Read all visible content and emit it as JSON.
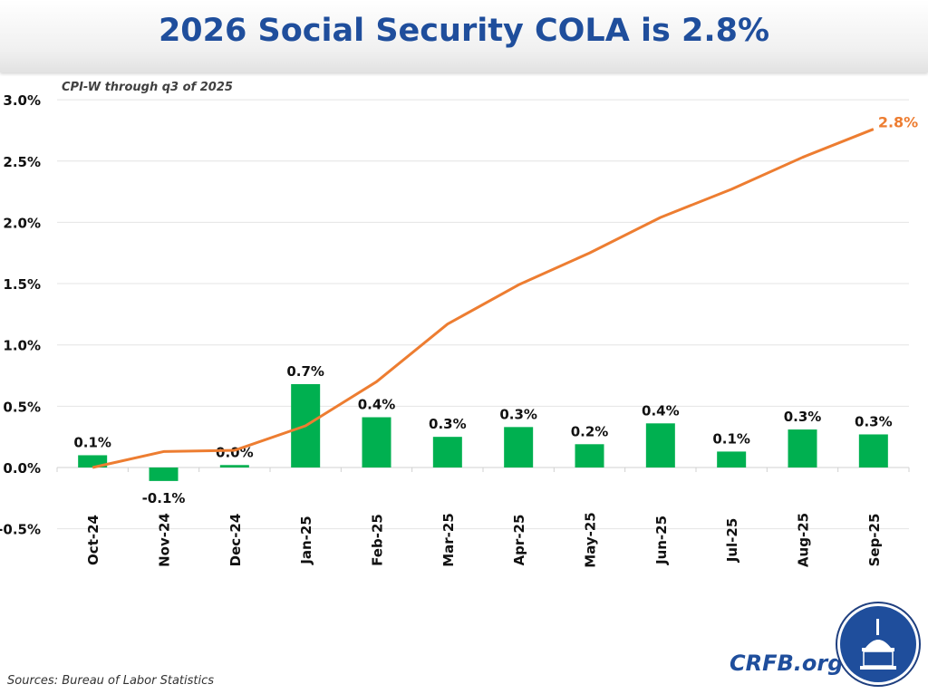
{
  "header": {
    "title": "2026 Social Security COLA is 2.8%"
  },
  "chart_data": {
    "type": "bar+line",
    "title": "2026 Social Security COLA is 2.8%",
    "subtitle": "CPI-W through q3 of 2025",
    "categories": [
      "Oct-24",
      "Nov-24",
      "Dec-24",
      "Jan-25",
      "Feb-25",
      "Mar-25",
      "Apr-25",
      "May-25",
      "Jun-25",
      "Jul-25",
      "Aug-25",
      "Sep-25"
    ],
    "series": [
      {
        "type": "bar",
        "values": [
          0.1,
          -0.11,
          0.02,
          0.68,
          0.41,
          0.25,
          0.33,
          0.19,
          0.36,
          0.13,
          0.31,
          0.27
        ],
        "labels": [
          "0.1%",
          "-0.1%",
          "0.0%",
          "0.7%",
          "0.4%",
          "0.3%",
          "0.3%",
          "0.2%",
          "0.4%",
          "0.1%",
          "0.3%",
          "0.3%"
        ],
        "color": "#00b050"
      },
      {
        "type": "line",
        "values": [
          0.0,
          0.13,
          0.14,
          0.34,
          0.7,
          1.17,
          1.49,
          1.75,
          2.04,
          2.27,
          2.53,
          2.76
        ],
        "end_label": "2.8%",
        "color": "#ed7d31"
      }
    ],
    "ylim": [
      -0.5,
      3.0
    ],
    "yticks": [
      "-0.5%",
      "0.0%",
      "0.5%",
      "1.0%",
      "1.5%",
      "2.0%",
      "2.5%",
      "3.0%"
    ],
    "grid": true,
    "legend": "none"
  },
  "footer": {
    "source": "Sources: Bureau of Labor Statistics",
    "brand": "CRFB.org"
  }
}
